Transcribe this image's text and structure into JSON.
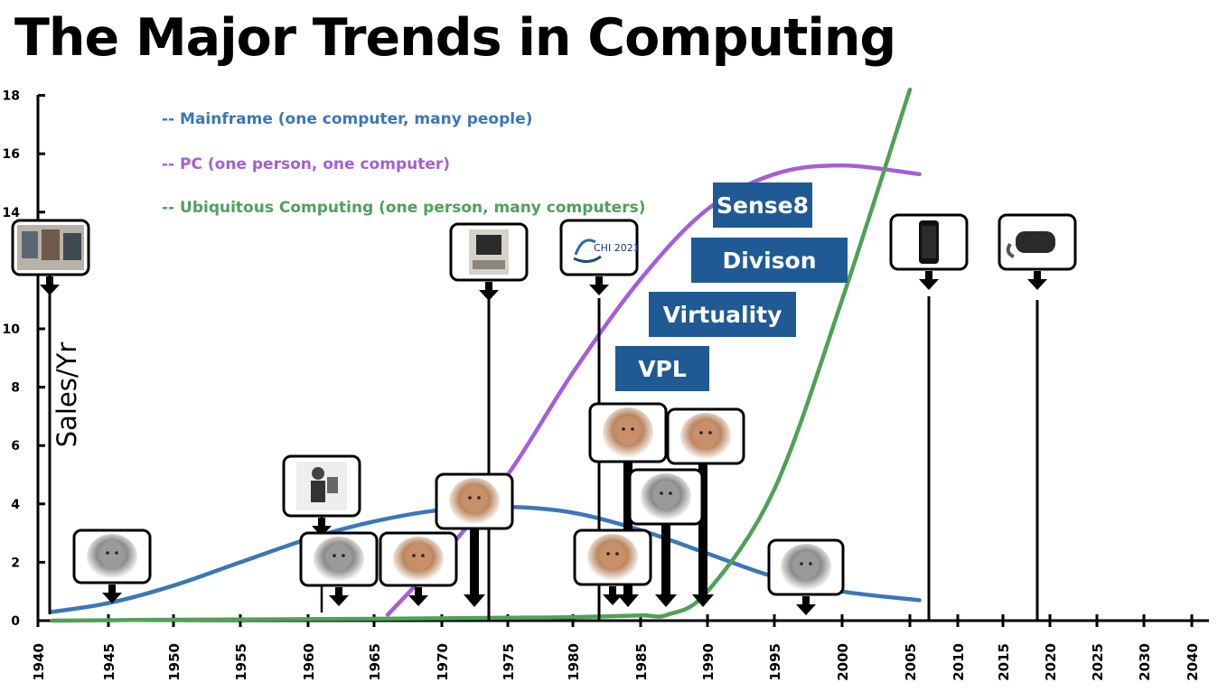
{
  "title": "The Major Trends in Computing",
  "chart_data": {
    "type": "line",
    "title": "The Major Trends in Computing",
    "xlabel": "",
    "ylabel": "Sales/Yr",
    "xlim": [
      1940,
      2040
    ],
    "ylim": [
      0,
      18
    ],
    "x_ticks": [
      1940,
      1945,
      1950,
      1955,
      1960,
      1965,
      1970,
      1975,
      1980,
      1985,
      1990,
      1995,
      2000,
      2005,
      2010,
      2015,
      2020,
      2025,
      2030,
      2040
    ],
    "y_ticks": [
      0,
      2,
      4,
      6,
      8,
      10,
      12,
      14,
      16,
      18
    ],
    "y_tick_labels": [
      "0",
      "2",
      "4",
      "6",
      "8",
      "10",
      "",
      "14",
      "16",
      "18"
    ],
    "legend_position": "top-left",
    "series": [
      {
        "name": "-- Mainframe (one computer, many people)",
        "color": "#3a77b8",
        "x": [
          1941,
          1945,
          1950,
          1955,
          1960,
          1965,
          1970,
          1975,
          1980,
          1985,
          1990,
          1995,
          2000,
          2006
        ],
        "y": [
          0.3,
          0.6,
          1.2,
          2.0,
          2.8,
          3.4,
          3.8,
          3.9,
          3.7,
          3.1,
          2.3,
          1.5,
          1.0,
          0.7
        ]
      },
      {
        "name": "-- PC (one person, one computer)",
        "color": "#a45fd6",
        "x": [
          1966,
          1970,
          1975,
          1980,
          1985,
          1990,
          1995,
          2000,
          2006
        ],
        "y": [
          0.2,
          2.2,
          5.0,
          8.5,
          11.7,
          14.1,
          15.3,
          15.6,
          15.3
        ]
      },
      {
        "name": "-- Ubiquitous Computing (one person, many computers)",
        "color": "#4ea257",
        "x": [
          1941,
          1950,
          1960,
          1970,
          1975,
          1980,
          1985,
          1987,
          1990,
          1995,
          2000,
          2005
        ],
        "y": [
          0.0,
          0.03,
          0.05,
          0.08,
          0.1,
          0.12,
          0.18,
          0.2,
          1.0,
          4.5,
          11.0,
          18.2
        ]
      }
    ],
    "annotations": [
      {
        "label": "Sense8",
        "color": "#1f5a94"
      },
      {
        "label": "Divison",
        "color": "#1f5a94"
      },
      {
        "label": "Virtuality",
        "color": "#1f5a94"
      },
      {
        "label": "VPL",
        "color": "#1f5a94"
      }
    ],
    "image_markers": [
      {
        "icon": "mainframe-computer-photo",
        "year": 1941
      },
      {
        "icon": "portrait-1945-photo",
        "year": 1945.5
      },
      {
        "icon": "engineer-at-machine-photo",
        "year": 1961.2
      },
      {
        "icon": "portrait-1962-photo",
        "year": 1963
      },
      {
        "icon": "portrait-1968-photo",
        "year": 1969
      },
      {
        "icon": "portrait-1972-photo",
        "year": 1972.5
      },
      {
        "icon": "early-personal-computer-photo",
        "year": 1973.5
      },
      {
        "icon": "chi-2021-logo",
        "year": 1982
      },
      {
        "icon": "portrait-1982-photo",
        "year": 1983
      },
      {
        "icon": "portrait-1984-photo",
        "year": 1984.2
      },
      {
        "icon": "portrait-1987-photo",
        "year": 1987
      },
      {
        "icon": "portrait-1990-photo",
        "year": 1990
      },
      {
        "icon": "portrait-1997-photo",
        "year": 1997.5
      },
      {
        "icon": "smartphone-photo",
        "year": 2007.5
      },
      {
        "icon": "vr-headset-photo",
        "year": 2019
      }
    ]
  }
}
